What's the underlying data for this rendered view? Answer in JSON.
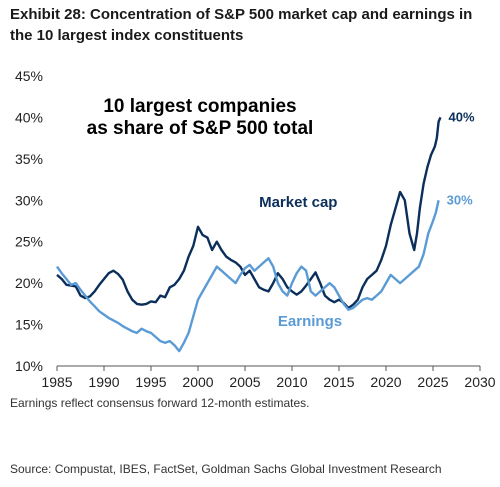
{
  "title": "Exhibit 28: Concentration of S&P 500 market cap and earnings in the 10 largest index constituents",
  "footnote": "Earnings reflect consensus forward 12-month estimates.",
  "source": "Source: Compustat, IBES, FactSet, Goldman Sachs Global Investment Research",
  "chart_data": {
    "type": "line",
    "title": "Exhibit 28: Concentration of S&P 500 market cap and earnings in the 10 largest index constituents",
    "inset_text": [
      "10 largest companies",
      "as share of S&P 500 total"
    ],
    "xlim": [
      1985,
      2030
    ],
    "ylim": [
      0.1,
      0.45
    ],
    "x_ticks": [
      "1985",
      "1990",
      "1995",
      "2000",
      "2005",
      "2010",
      "2015",
      "2020",
      "2025",
      "2030"
    ],
    "y_ticks": [
      "10%",
      "15%",
      "20%",
      "25%",
      "30%",
      "35%",
      "40%",
      "45%"
    ],
    "grid": false,
    "series": [
      {
        "name": "Market cap",
        "color": "#0b2f5a",
        "end_label": "40%",
        "points": [
          [
            1985.0,
            0.21
          ],
          [
            1985.5,
            0.205
          ],
          [
            1986.0,
            0.198
          ],
          [
            1986.5,
            0.197
          ],
          [
            1987.0,
            0.196
          ],
          [
            1987.5,
            0.185
          ],
          [
            1988.0,
            0.182
          ],
          [
            1988.5,
            0.184
          ],
          [
            1989.0,
            0.19
          ],
          [
            1989.5,
            0.198
          ],
          [
            1990.0,
            0.205
          ],
          [
            1990.5,
            0.212
          ],
          [
            1991.0,
            0.215
          ],
          [
            1991.5,
            0.211
          ],
          [
            1992.0,
            0.204
          ],
          [
            1992.5,
            0.19
          ],
          [
            1993.0,
            0.18
          ],
          [
            1993.5,
            0.175
          ],
          [
            1994.0,
            0.174
          ],
          [
            1994.5,
            0.175
          ],
          [
            1995.0,
            0.178
          ],
          [
            1995.5,
            0.177
          ],
          [
            1996.0,
            0.185
          ],
          [
            1996.5,
            0.183
          ],
          [
            1997.0,
            0.195
          ],
          [
            1997.5,
            0.198
          ],
          [
            1998.0,
            0.205
          ],
          [
            1998.5,
            0.215
          ],
          [
            1999.0,
            0.232
          ],
          [
            1999.5,
            0.245
          ],
          [
            2000.0,
            0.268
          ],
          [
            2000.5,
            0.258
          ],
          [
            2001.0,
            0.255
          ],
          [
            2001.5,
            0.24
          ],
          [
            2002.0,
            0.25
          ],
          [
            2002.5,
            0.24
          ],
          [
            2003.0,
            0.232
          ],
          [
            2003.5,
            0.228
          ],
          [
            2004.0,
            0.225
          ],
          [
            2004.5,
            0.22
          ],
          [
            2005.0,
            0.21
          ],
          [
            2005.5,
            0.215
          ],
          [
            2006.0,
            0.205
          ],
          [
            2006.5,
            0.195
          ],
          [
            2007.0,
            0.192
          ],
          [
            2007.5,
            0.19
          ],
          [
            2008.0,
            0.2
          ],
          [
            2008.5,
            0.212
          ],
          [
            2009.0,
            0.205
          ],
          [
            2009.5,
            0.195
          ],
          [
            2010.0,
            0.19
          ],
          [
            2010.5,
            0.186
          ],
          [
            2011.0,
            0.19
          ],
          [
            2011.5,
            0.197
          ],
          [
            2012.0,
            0.205
          ],
          [
            2012.5,
            0.213
          ],
          [
            2013.0,
            0.2
          ],
          [
            2013.5,
            0.185
          ],
          [
            2014.0,
            0.18
          ],
          [
            2014.5,
            0.177
          ],
          [
            2015.0,
            0.18
          ],
          [
            2015.5,
            0.176
          ],
          [
            2016.0,
            0.17
          ],
          [
            2016.5,
            0.174
          ],
          [
            2017.0,
            0.18
          ],
          [
            2017.5,
            0.195
          ],
          [
            2018.0,
            0.205
          ],
          [
            2018.5,
            0.21
          ],
          [
            2019.0,
            0.215
          ],
          [
            2019.5,
            0.228
          ],
          [
            2020.0,
            0.245
          ],
          [
            2020.5,
            0.27
          ],
          [
            2021.0,
            0.29
          ],
          [
            2021.5,
            0.31
          ],
          [
            2022.0,
            0.3
          ],
          [
            2022.5,
            0.26
          ],
          [
            2023.0,
            0.24
          ],
          [
            2023.3,
            0.26
          ],
          [
            2023.6,
            0.29
          ],
          [
            2024.0,
            0.32
          ],
          [
            2024.4,
            0.34
          ],
          [
            2024.8,
            0.355
          ],
          [
            2025.2,
            0.365
          ],
          [
            2025.4,
            0.375
          ],
          [
            2025.6,
            0.395
          ],
          [
            2025.8,
            0.4
          ]
        ]
      },
      {
        "name": "Earnings",
        "color": "#5b9bd5",
        "end_label": "30%",
        "points": [
          [
            1985.0,
            0.22
          ],
          [
            1985.5,
            0.212
          ],
          [
            1986.0,
            0.205
          ],
          [
            1986.5,
            0.198
          ],
          [
            1987.0,
            0.2
          ],
          [
            1987.5,
            0.192
          ],
          [
            1988.0,
            0.185
          ],
          [
            1988.5,
            0.178
          ],
          [
            1989.0,
            0.172
          ],
          [
            1989.5,
            0.166
          ],
          [
            1990.0,
            0.162
          ],
          [
            1990.5,
            0.158
          ],
          [
            1991.0,
            0.155
          ],
          [
            1991.5,
            0.152
          ],
          [
            1992.0,
            0.148
          ],
          [
            1992.5,
            0.145
          ],
          [
            1993.0,
            0.142
          ],
          [
            1993.5,
            0.14
          ],
          [
            1994.0,
            0.145
          ],
          [
            1994.5,
            0.142
          ],
          [
            1995.0,
            0.14
          ],
          [
            1995.5,
            0.135
          ],
          [
            1996.0,
            0.13
          ],
          [
            1996.5,
            0.128
          ],
          [
            1997.0,
            0.13
          ],
          [
            1997.5,
            0.125
          ],
          [
            1998.0,
            0.118
          ],
          [
            1998.5,
            0.128
          ],
          [
            1999.0,
            0.14
          ],
          [
            1999.5,
            0.16
          ],
          [
            2000.0,
            0.18
          ],
          [
            2000.5,
            0.19
          ],
          [
            2001.0,
            0.2
          ],
          [
            2001.5,
            0.21
          ],
          [
            2002.0,
            0.22
          ],
          [
            2002.5,
            0.215
          ],
          [
            2003.0,
            0.21
          ],
          [
            2003.5,
            0.205
          ],
          [
            2004.0,
            0.2
          ],
          [
            2004.5,
            0.21
          ],
          [
            2005.0,
            0.218
          ],
          [
            2005.5,
            0.222
          ],
          [
            2006.0,
            0.215
          ],
          [
            2006.5,
            0.22
          ],
          [
            2007.0,
            0.225
          ],
          [
            2007.5,
            0.23
          ],
          [
            2008.0,
            0.22
          ],
          [
            2008.5,
            0.2
          ],
          [
            2009.0,
            0.19
          ],
          [
            2009.5,
            0.185
          ],
          [
            2010.0,
            0.2
          ],
          [
            2010.5,
            0.212
          ],
          [
            2011.0,
            0.22
          ],
          [
            2011.5,
            0.215
          ],
          [
            2012.0,
            0.19
          ],
          [
            2012.5,
            0.185
          ],
          [
            2013.0,
            0.19
          ],
          [
            2013.5,
            0.195
          ],
          [
            2014.0,
            0.2
          ],
          [
            2014.5,
            0.195
          ],
          [
            2015.0,
            0.185
          ],
          [
            2015.5,
            0.175
          ],
          [
            2016.0,
            0.168
          ],
          [
            2016.5,
            0.17
          ],
          [
            2017.0,
            0.175
          ],
          [
            2017.5,
            0.18
          ],
          [
            2018.0,
            0.182
          ],
          [
            2018.5,
            0.18
          ],
          [
            2019.0,
            0.185
          ],
          [
            2019.5,
            0.19
          ],
          [
            2020.0,
            0.2
          ],
          [
            2020.5,
            0.21
          ],
          [
            2021.0,
            0.205
          ],
          [
            2021.5,
            0.2
          ],
          [
            2022.0,
            0.205
          ],
          [
            2022.5,
            0.21
          ],
          [
            2023.0,
            0.215
          ],
          [
            2023.5,
            0.22
          ],
          [
            2024.0,
            0.235
          ],
          [
            2024.5,
            0.26
          ],
          [
            2025.0,
            0.275
          ],
          [
            2025.3,
            0.285
          ],
          [
            2025.6,
            0.3
          ]
        ]
      }
    ]
  }
}
